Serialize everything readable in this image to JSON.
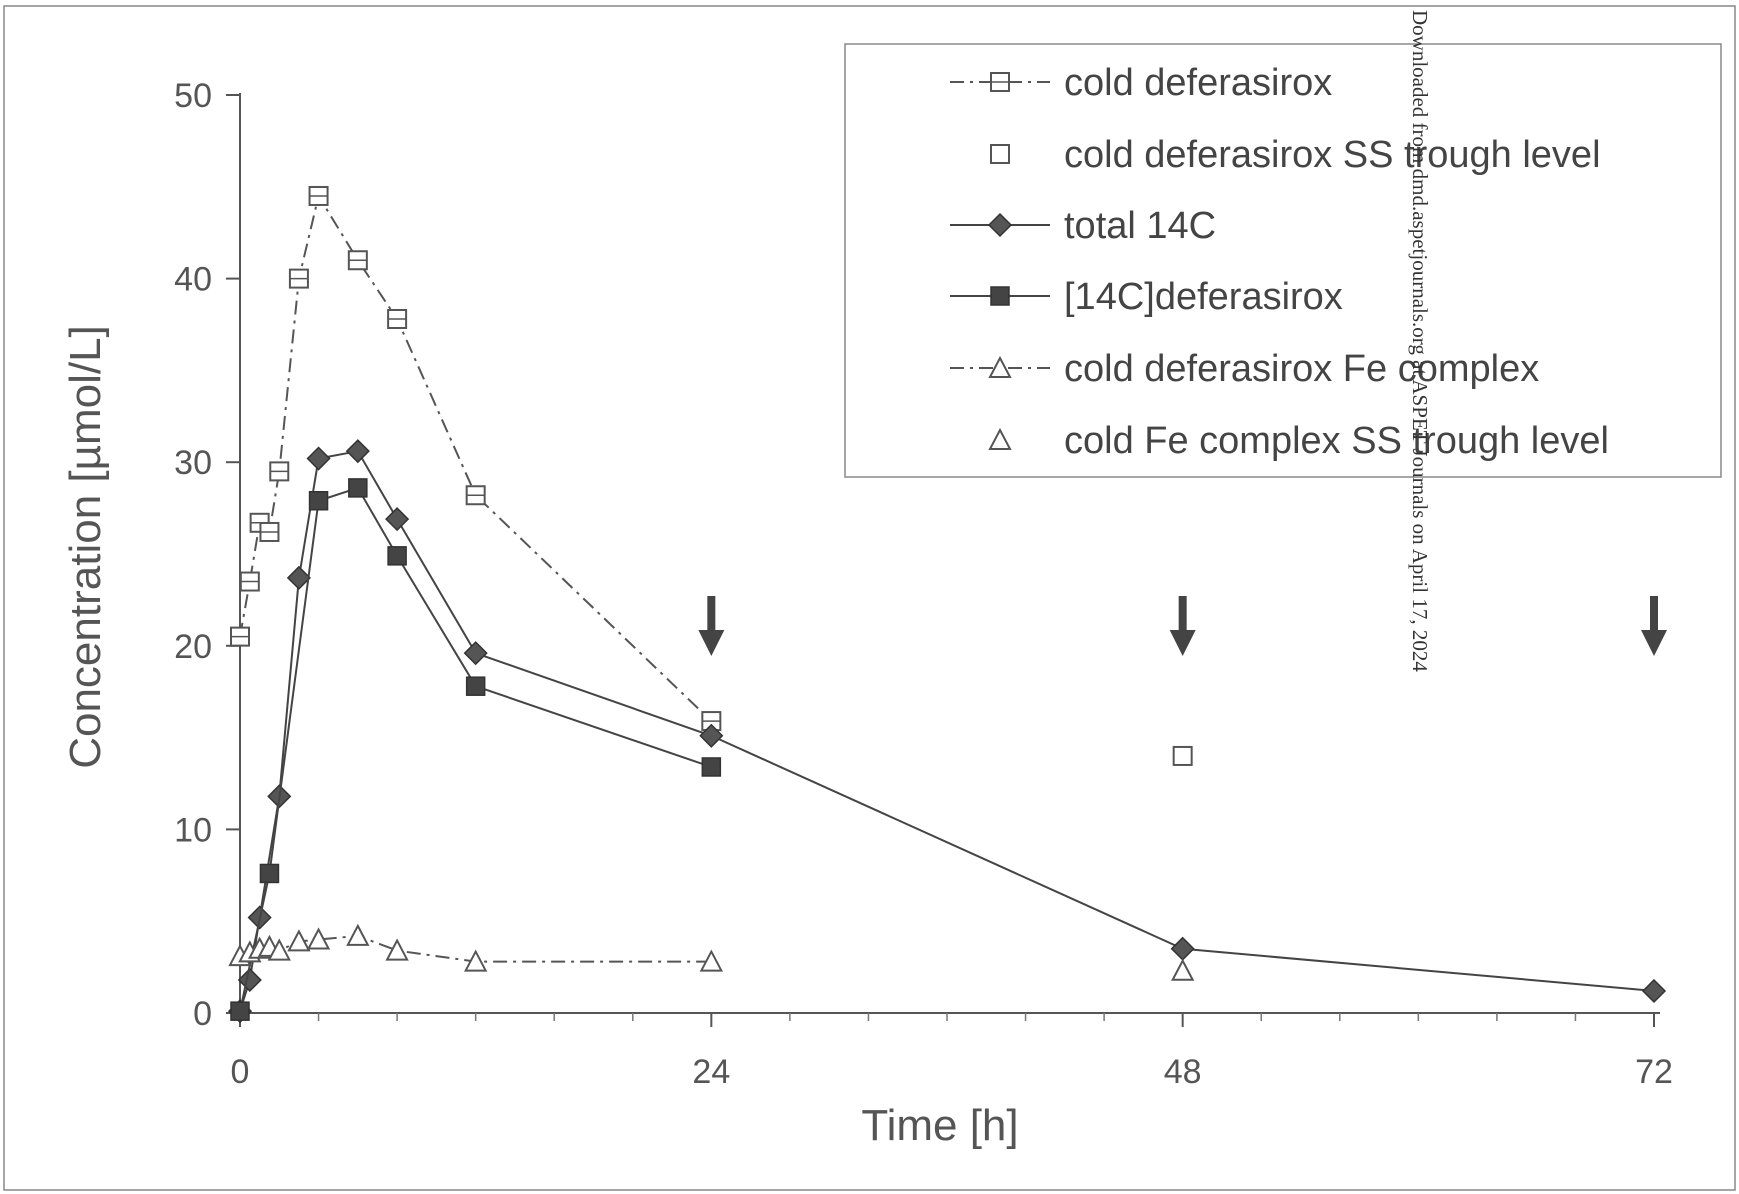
{
  "watermark": "Downloaded from dmd.aspetjournals.org at ASPET Journals on April 17, 2024",
  "chart_data": {
    "type": "line",
    "title": "",
    "xlabel": "Time [h]",
    "ylabel": "Concentration [µmol/L]",
    "xlim": [
      0,
      72
    ],
    "ylim": [
      0,
      50
    ],
    "xticks": [
      0,
      24,
      48,
      72
    ],
    "yticks": [
      0,
      10,
      20,
      30,
      40,
      50
    ],
    "grid": false,
    "legend_position": "top-right",
    "dosing_arrows_x": [
      24,
      48,
      72
    ],
    "series": [
      {
        "name": "cold deferasirox",
        "style": "dash-dot",
        "marker": "open-square-cross",
        "color": "#555555",
        "points": [
          [
            0,
            20.5
          ],
          [
            0.5,
            23.5
          ],
          [
            1,
            26.7
          ],
          [
            1.5,
            26.2
          ],
          [
            2,
            29.5
          ],
          [
            3,
            40.0
          ],
          [
            4,
            44.5
          ],
          [
            6,
            41.0
          ],
          [
            8,
            37.8
          ],
          [
            12,
            28.2
          ],
          [
            24,
            15.9
          ]
        ]
      },
      {
        "name": "cold deferasirox SS trough level",
        "style": "none",
        "marker": "open-square",
        "color": "#555555",
        "points": [
          [
            48,
            14.0
          ]
        ]
      },
      {
        "name": "total 14C",
        "style": "solid",
        "marker": "filled-diamond",
        "color": "#444444",
        "points": [
          [
            0,
            0.1
          ],
          [
            0.5,
            1.8
          ],
          [
            1,
            5.2
          ],
          [
            2,
            11.8
          ],
          [
            3,
            23.7
          ],
          [
            4,
            30.2
          ],
          [
            6,
            30.6
          ],
          [
            8,
            26.9
          ],
          [
            12,
            19.6
          ],
          [
            24,
            15.1
          ],
          [
            48,
            3.5
          ],
          [
            72,
            1.2
          ]
        ]
      },
      {
        "name": "[14C]deferasirox",
        "style": "solid",
        "marker": "filled-square",
        "color": "#444444",
        "points": [
          [
            0,
            0.1
          ],
          [
            1.5,
            7.6
          ],
          [
            4,
            27.9
          ],
          [
            6,
            28.6
          ],
          [
            8,
            24.9
          ],
          [
            12,
            17.8
          ],
          [
            24,
            13.4
          ]
        ]
      },
      {
        "name": "cold deferasirox Fe complex",
        "style": "dash-dot",
        "marker": "open-triangle",
        "color": "#555555",
        "points": [
          [
            0,
            3.1
          ],
          [
            0.5,
            3.3
          ],
          [
            1,
            3.5
          ],
          [
            1.5,
            3.6
          ],
          [
            2,
            3.4
          ],
          [
            3,
            3.9
          ],
          [
            4,
            4.0
          ],
          [
            6,
            4.2
          ],
          [
            8,
            3.4
          ],
          [
            12,
            2.8
          ],
          [
            24,
            2.8
          ]
        ]
      },
      {
        "name": "cold Fe complex SS trough level",
        "style": "none",
        "marker": "open-triangle",
        "color": "#555555",
        "points": [
          [
            48,
            2.3
          ]
        ]
      }
    ]
  }
}
